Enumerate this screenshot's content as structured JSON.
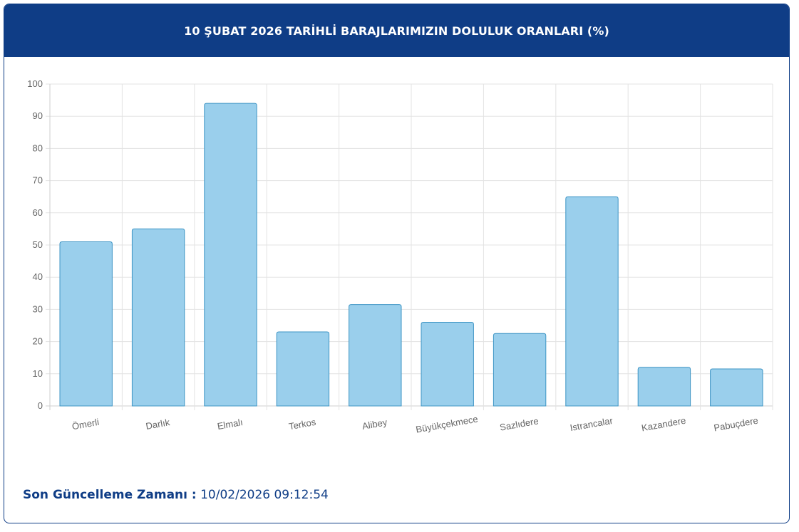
{
  "header": {
    "title": "10 ŞUBAT 2026 TARİHLİ BARAJLARIMIZIN DOLULUK ORANLARI (%)"
  },
  "footer": {
    "label": "Son Güncelleme Zamanı :",
    "value": "10/02/2026 09:12:54"
  },
  "colors": {
    "header_bg": "#0f3d86",
    "bar_fill": "#9acfec",
    "bar_stroke": "#3d94c4",
    "grid": "#e3e3e3",
    "tick_text": "#666666"
  },
  "chart_data": {
    "type": "bar",
    "categories": [
      "Ömerli",
      "Darlık",
      "Elmalı",
      "Terkos",
      "Alibey",
      "Büyükçekmece",
      "Sazlıdere",
      "Istrancalar",
      "Kazandere",
      "Pabuçdere"
    ],
    "values": [
      51,
      55,
      94,
      23,
      31.5,
      26,
      22.5,
      65,
      12,
      11.5
    ],
    "ylim": [
      0,
      100
    ],
    "yticks": [
      0,
      10,
      20,
      30,
      40,
      50,
      60,
      70,
      80,
      90,
      100
    ],
    "grid": true,
    "title": "",
    "xlabel": "",
    "ylabel": ""
  }
}
